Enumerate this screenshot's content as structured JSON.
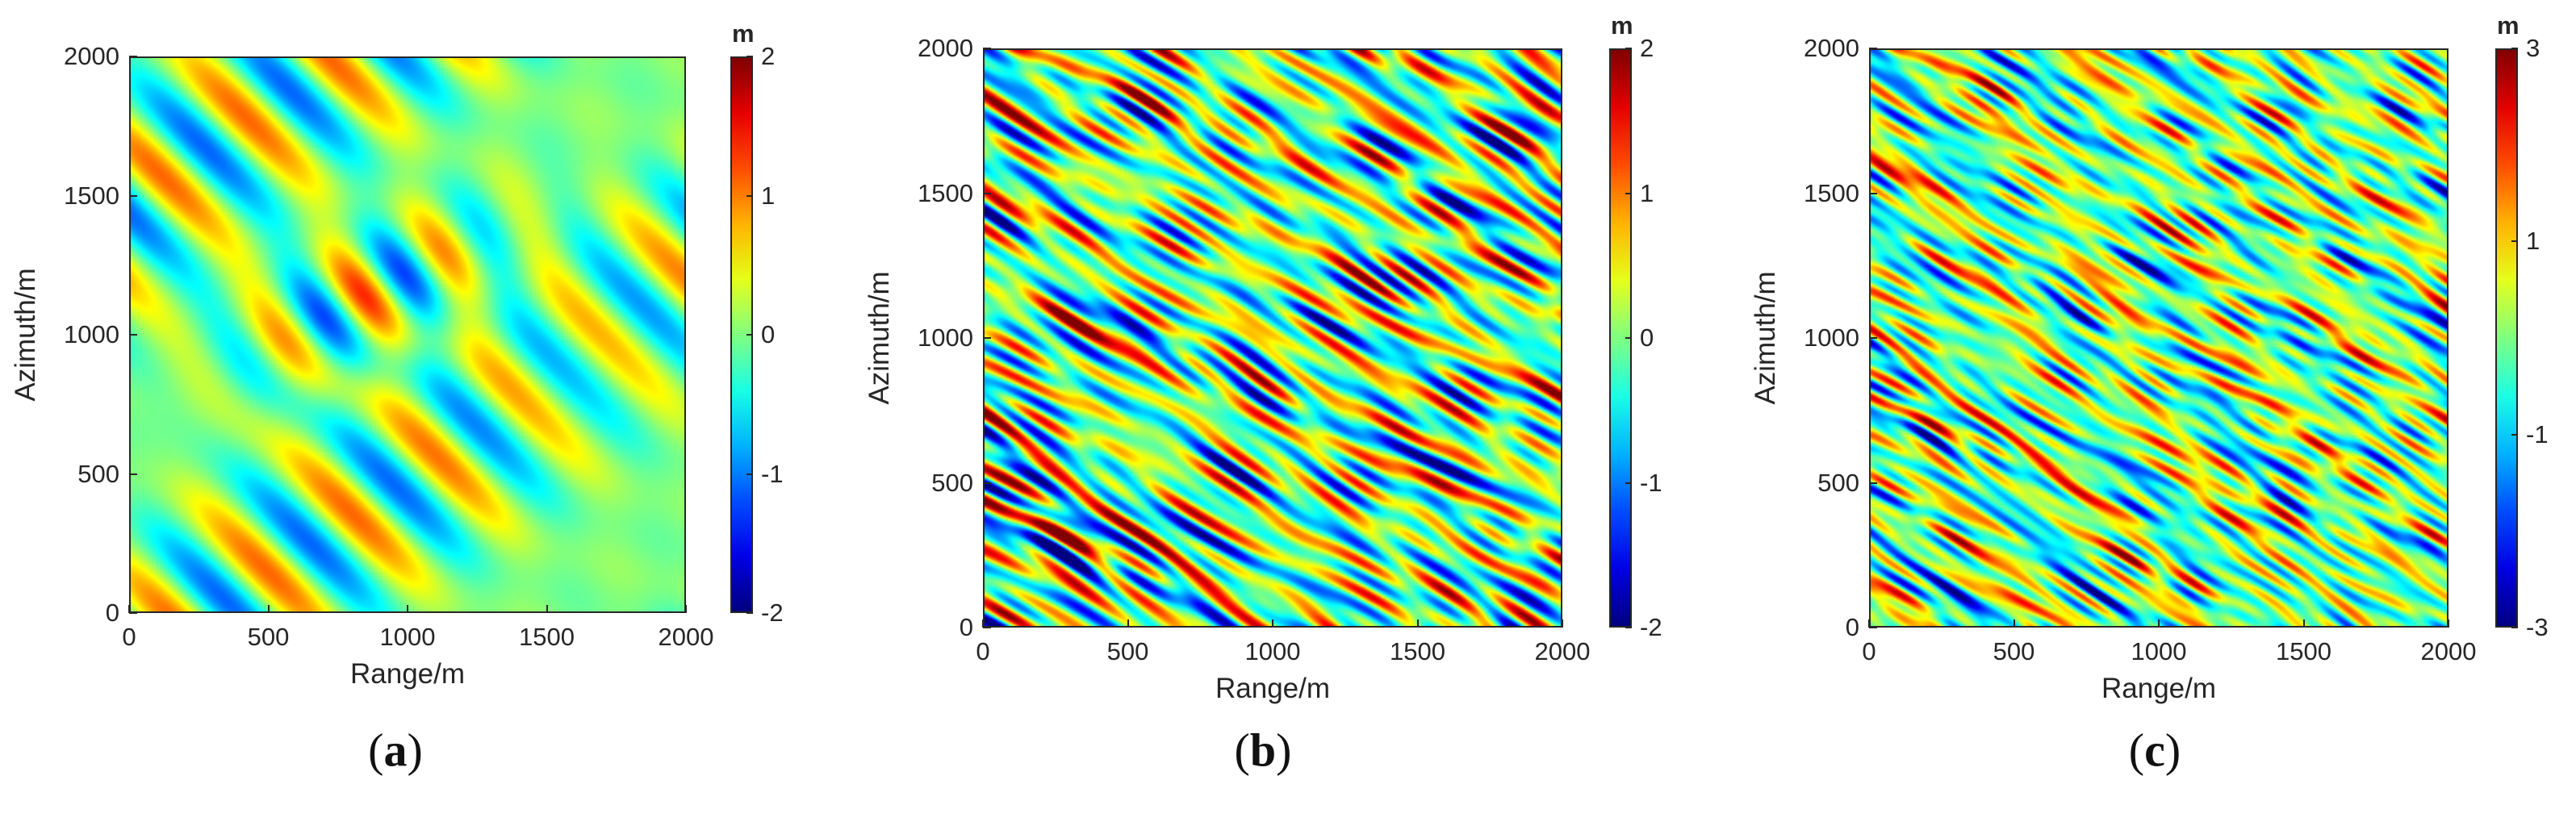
{
  "chart_data": [
    {
      "type": "heatmap",
      "panel": "(a)",
      "caption_letter": "a",
      "xlabel": "Range/m",
      "ylabel": "Azimuth/m",
      "xlim": [
        0,
        2000
      ],
      "ylim": [
        0,
        2000
      ],
      "xticks": [
        0,
        500,
        1000,
        1500,
        2000
      ],
      "yticks": [
        0,
        500,
        1000,
        1500,
        2000
      ],
      "colorbar": {
        "unit": "m",
        "range": [
          -2,
          2
        ],
        "ticks": [
          2,
          1,
          0,
          -1,
          -2
        ],
        "colormap": "jet"
      },
      "pattern": "smooth"
    },
    {
      "type": "heatmap",
      "panel": "(b)",
      "caption_letter": "b",
      "xlabel": "Range/m",
      "ylabel": "Azimuth/m",
      "xlim": [
        0,
        2000
      ],
      "ylim": [
        0,
        2000
      ],
      "xticks": [
        0,
        500,
        1000,
        1500,
        2000
      ],
      "yticks": [
        0,
        500,
        1000,
        1500,
        2000
      ],
      "colorbar": {
        "unit": "m",
        "range": [
          -2,
          2
        ],
        "ticks": [
          2,
          1,
          0,
          -1,
          -2
        ],
        "colormap": "jet"
      },
      "pattern": "noise"
    },
    {
      "type": "heatmap",
      "panel": "(c)",
      "caption_letter": "c",
      "xlabel": "Range/m",
      "ylabel": "Azimuth/m",
      "xlim": [
        0,
        2000
      ],
      "ylim": [
        0,
        2000
      ],
      "xticks": [
        0,
        500,
        1000,
        1500,
        2000
      ],
      "yticks": [
        0,
        500,
        1000,
        1500,
        2000
      ],
      "colorbar": {
        "unit": "m",
        "range": [
          -3,
          3
        ],
        "ticks": [
          3,
          1,
          -1,
          -3
        ],
        "colormap": "jet"
      },
      "pattern": "combined"
    }
  ]
}
